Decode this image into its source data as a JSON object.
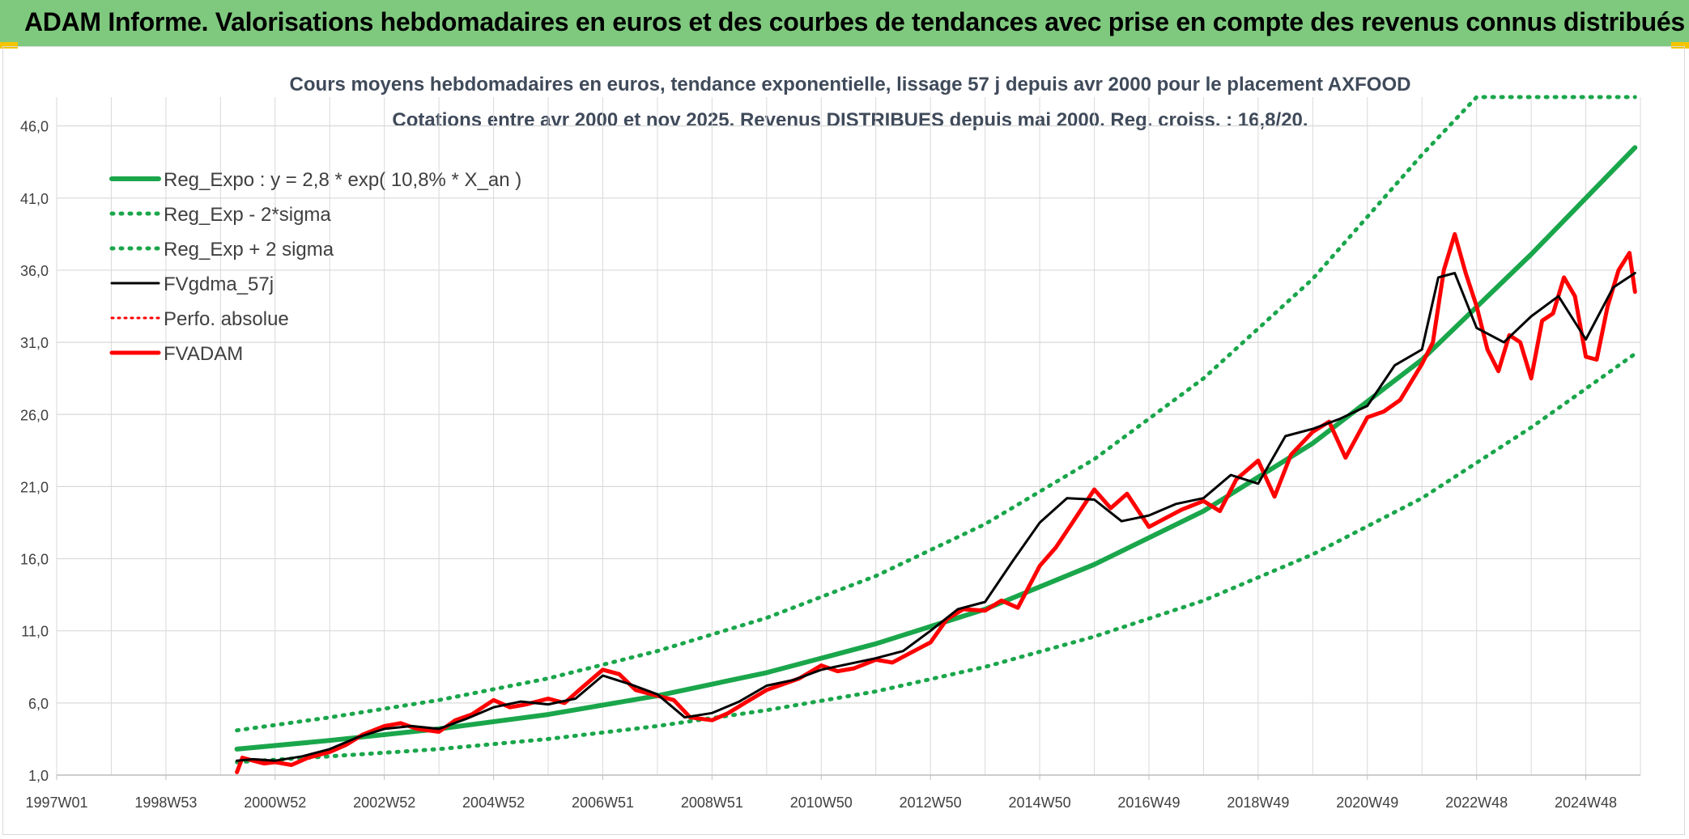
{
  "header": {
    "title": "ADAM Informe. Valorisations hebdomadaires en euros et des courbes de tendances avec prise en compte des revenus connus distribués"
  },
  "colors": {
    "banner": "#7fc97f",
    "reg_green": "#1aa64b",
    "price_red": "#ff0000",
    "ma_black": "#000000",
    "grid": "#d9d9d9"
  },
  "chart_data": {
    "type": "line",
    "title": "Cours moyens hebdomadaires en euros, tendance exponentielle, lissage 57 j depuis avr 2000 pour le placement AXFOOD",
    "subtitle": "Cotations entre avr 2000 et nov 2025. Revenus DISTRIBUES depuis mai 2000. Reg. croiss. : 16,8/20.",
    "xlabel": "",
    "ylabel": "",
    "xlim": [
      1997.0,
      2026.0
    ],
    "ylim": [
      1.0,
      48.0
    ],
    "y_ticks": [
      "1,0",
      "6,0",
      "11,0",
      "16,0",
      "21,0",
      "26,0",
      "31,0",
      "36,0",
      "41,0",
      "46,0"
    ],
    "y_tick_values": [
      1,
      6,
      11,
      16,
      21,
      26,
      31,
      36,
      41,
      46
    ],
    "x_ticks": [
      "1997W01",
      "1998W53",
      "2000W52",
      "2002W52",
      "2004W52",
      "2006W51",
      "2008W51",
      "2010W50",
      "2012W50",
      "2014W50",
      "2016W49",
      "2018W49",
      "2020W49",
      "2022W48",
      "2024W48"
    ],
    "x_tick_values": [
      1997.0,
      1999.0,
      2001.0,
      2003.0,
      2005.0,
      2007.0,
      2009.0,
      2011.0,
      2013.0,
      2015.0,
      2017.0,
      2019.0,
      2021.0,
      2023.0,
      2025.0
    ],
    "legend": [
      "Reg_Expo : y = 2,8 * exp( 10,8% *  X_an )",
      "Reg_Exp - 2*sigma",
      "Reg_Exp + 2 sigma",
      "FVgdma_57j",
      "Perfo. absolue",
      "FVADAM"
    ],
    "legend_position": "top-left",
    "series": [
      {
        "name": "Reg_Expo : y = 2,8 * exp( 10,8% *  X_an )",
        "style": "solid-green",
        "x": [
          2000.3,
          2002.0,
          2004.0,
          2006.0,
          2008.0,
          2010.0,
          2012.0,
          2014.0,
          2016.0,
          2018.0,
          2020.0,
          2022.0,
          2024.0,
          2025.9
        ],
        "y": [
          2.8,
          3.4,
          4.2,
          5.2,
          6.5,
          8.1,
          10.1,
          12.5,
          15.6,
          19.3,
          24.0,
          29.8,
          37.1,
          44.5
        ]
      },
      {
        "name": "Reg_Exp - 2*sigma",
        "style": "dotted-green",
        "x": [
          2000.3,
          2002.0,
          2004.0,
          2006.0,
          2008.0,
          2010.0,
          2012.0,
          2014.0,
          2016.0,
          2018.0,
          2020.0,
          2022.0,
          2024.0,
          2025.9
        ],
        "y": [
          1.9,
          2.3,
          2.8,
          3.5,
          4.4,
          5.5,
          6.8,
          8.5,
          10.6,
          13.1,
          16.3,
          20.2,
          25.1,
          30.2
        ]
      },
      {
        "name": "Reg_Exp + 2 sigma",
        "style": "dotted-green",
        "x": [
          2000.3,
          2002.0,
          2004.0,
          2006.0,
          2008.0,
          2010.0,
          2012.0,
          2014.0,
          2016.0,
          2018.0,
          2020.0,
          2022.0,
          2023.0,
          2025.9
        ],
        "y": [
          4.1,
          5.0,
          6.2,
          7.7,
          9.6,
          11.9,
          14.8,
          18.4,
          22.9,
          28.5,
          35.4,
          44.0,
          48.0,
          48.0
        ]
      },
      {
        "name": "FVgdma_57j",
        "style": "solid-black",
        "x": [
          2000.3,
          2000.6,
          2001.0,
          2001.5,
          2002.0,
          2002.5,
          2003.0,
          2003.5,
          2004.0,
          2004.5,
          2005.0,
          2005.5,
          2006.0,
          2006.5,
          2007.0,
          2007.5,
          2008.0,
          2008.5,
          2009.0,
          2009.5,
          2010.0,
          2010.5,
          2011.0,
          2011.5,
          2012.0,
          2012.5,
          2013.0,
          2013.5,
          2014.0,
          2014.5,
          2015.0,
          2015.5,
          2016.0,
          2016.5,
          2017.0,
          2017.5,
          2018.0,
          2018.5,
          2019.0,
          2019.5,
          2020.0,
          2020.5,
          2021.0,
          2021.5,
          2022.0,
          2022.3,
          2022.6,
          2023.0,
          2023.5,
          2024.0,
          2024.5,
          2025.0,
          2025.5,
          2025.9
        ],
        "y": [
          2.0,
          2.1,
          2.0,
          2.3,
          2.8,
          3.6,
          4.2,
          4.4,
          4.2,
          4.9,
          5.7,
          6.1,
          5.9,
          6.3,
          7.9,
          7.3,
          6.6,
          5.0,
          5.3,
          6.1,
          7.2,
          7.6,
          8.3,
          8.7,
          9.1,
          9.6,
          11.0,
          12.5,
          13.0,
          15.8,
          18.5,
          20.2,
          20.1,
          18.6,
          19.0,
          19.8,
          20.2,
          21.8,
          21.2,
          24.5,
          25.0,
          25.7,
          26.6,
          29.4,
          30.5,
          35.5,
          35.8,
          32.0,
          31.0,
          32.8,
          34.2,
          31.2,
          34.8,
          35.8
        ]
      },
      {
        "name": "Perfo. absolue",
        "style": "dotted-red",
        "x": [],
        "y": []
      },
      {
        "name": "FVADAM",
        "style": "solid-red",
        "x": [
          2000.3,
          2000.4,
          2000.6,
          2000.8,
          2001.0,
          2001.3,
          2001.6,
          2002.0,
          2002.3,
          2002.6,
          2003.0,
          2003.3,
          2003.6,
          2004.0,
          2004.3,
          2004.6,
          2005.0,
          2005.3,
          2005.6,
          2006.0,
          2006.3,
          2006.6,
          2007.0,
          2007.3,
          2007.6,
          2008.0,
          2008.3,
          2008.6,
          2009.0,
          2009.3,
          2009.6,
          2010.0,
          2010.3,
          2010.6,
          2011.0,
          2011.3,
          2011.6,
          2012.0,
          2012.3,
          2012.6,
          2013.0,
          2013.3,
          2013.6,
          2014.0,
          2014.3,
          2014.6,
          2015.0,
          2015.3,
          2015.6,
          2016.0,
          2016.3,
          2016.6,
          2017.0,
          2017.3,
          2017.6,
          2018.0,
          2018.3,
          2018.6,
          2019.0,
          2019.3,
          2019.6,
          2020.0,
          2020.3,
          2020.6,
          2021.0,
          2021.3,
          2021.6,
          2022.0,
          2022.2,
          2022.4,
          2022.6,
          2022.8,
          2023.0,
          2023.2,
          2023.4,
          2023.6,
          2023.8,
          2024.0,
          2024.2,
          2024.4,
          2024.6,
          2024.8,
          2025.0,
          2025.2,
          2025.4,
          2025.6,
          2025.8,
          2025.9
        ],
        "y": [
          1.2,
          2.2,
          2.0,
          1.8,
          1.9,
          1.7,
          2.2,
          2.6,
          3.1,
          3.8,
          4.4,
          4.6,
          4.2,
          4.0,
          4.8,
          5.2,
          6.2,
          5.7,
          5.9,
          6.3,
          6.0,
          7.0,
          8.3,
          8.0,
          6.9,
          6.5,
          6.2,
          5.0,
          4.8,
          5.3,
          6.0,
          6.9,
          7.3,
          7.7,
          8.6,
          8.2,
          8.4,
          9.0,
          8.8,
          9.4,
          10.2,
          11.8,
          12.5,
          12.4,
          13.1,
          12.6,
          15.5,
          16.8,
          18.5,
          20.8,
          19.5,
          20.5,
          18.2,
          18.8,
          19.4,
          20.0,
          19.3,
          21.5,
          22.8,
          20.3,
          23.2,
          24.8,
          25.5,
          23.0,
          25.8,
          26.2,
          27.0,
          29.5,
          31.0,
          36.0,
          38.5,
          35.8,
          33.5,
          30.5,
          29.0,
          31.5,
          31.0,
          28.5,
          32.5,
          33.0,
          35.5,
          34.2,
          30.0,
          29.8,
          33.5,
          36.0,
          37.2,
          34.5
        ]
      }
    ]
  }
}
